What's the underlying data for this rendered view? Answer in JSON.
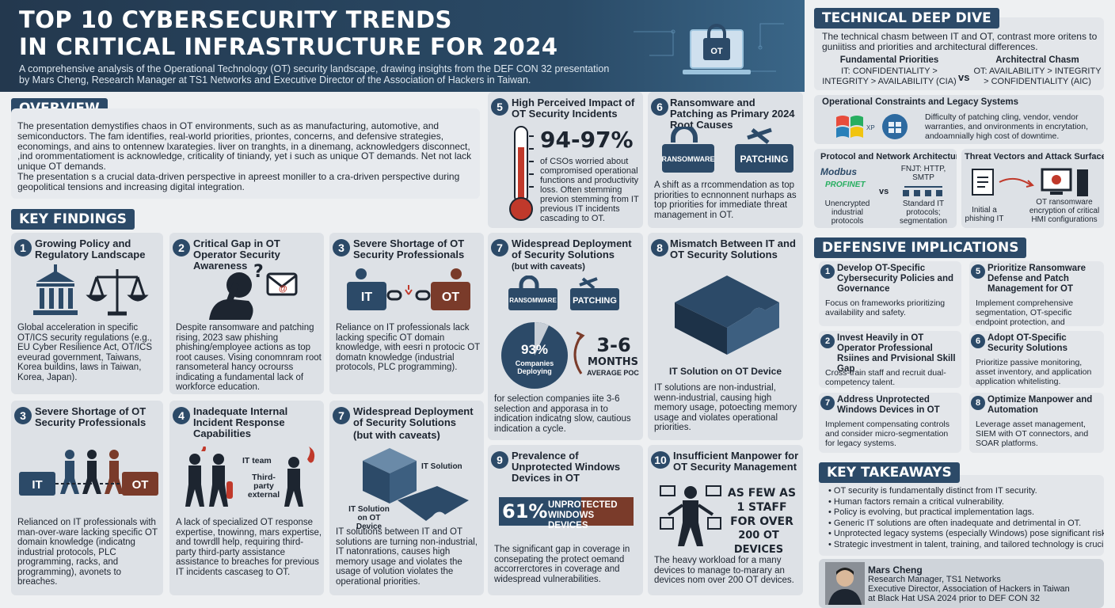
{
  "header": {
    "title_line1": "TOP 10 CYBERSECURITY TRENDS",
    "title_line2": "IN CRITICAL INFRASTRUCTURE FOR 2024",
    "subtitle": "A comprehensive analysis of the Operational Technology (OT) security landscape, drawing insights from the DEF CON 32 presentation by Mars Cheng, Research Manager at TS1 Networks and Executive Director of the Association of Hackers in Taiwan.",
    "monitor_label": "OT"
  },
  "overview": {
    "heading": "OVERVIEW",
    "p1": "The presentation demystifies chaos in OT environments, such as as manufacturing, automotive, and semiconductors. The fam identifies, real-world priorities, priontes, concerns, and defensive strategies, economings, and ains to ontennew lxarategies. liver on tranghts, in a dinemang, acknowledgers disconnect, ,ind orommentatioment is acknowledge, criticality of tiniandy, yet i such as unique OT demands. Net not lack unique OT demands.",
    "p2": "The presentation s a crucial data-driven perspective in apreest moniller to a cra-driven perspective during geopolitical tensions and increasing digital integration."
  },
  "key_findings_heading": "KEY FINDINGS",
  "cards": {
    "c1": {
      "num": "1",
      "title": "Growing Policy and Regulatory Landscape",
      "body": "Global acceleration in specific OT/ICS security regulations (e.g., EU Cyber Resilience Act, OT/ICS eveurad government, Taiwans, Korea buildins, laws in Taiwan, Korea, Japan)."
    },
    "c2": {
      "num": "2",
      "title": "Critical Gap in OT Operator Security Awareness",
      "body": "Despite ransomware and patching rising, 2023 saw phishing phishing/employee actions as top root causes. Vising conomnram root ransometeral hancy ocrourss indicating a fundamental lack of workforce education."
    },
    "c3": {
      "num": "3",
      "title": "Severe Shortage of OT Security Professionals",
      "body": "Reliance on IT professionals lack lacking specific OT domain knowledge, with eesri n protocic OT domatn knowledge (industrial protocols, PLC programming).",
      "it": "IT",
      "ot": "OT"
    },
    "c3b": {
      "num": "3",
      "title": "Severe Shortage of OT Security Professionals",
      "body": "Relianced on IT professionals with man-over-ware lacking specific OT domain knowledge (indicatng industrial protocols, PLC programming, racks, and programming), avonets to breaches.",
      "it": "IT",
      "ot": "OT"
    },
    "c4": {
      "num": "4",
      "title": "Inadequate Internal Incident Response Capabilities",
      "body": "A lack of specialized OT response expertise, tnowinng, mars expertise, and towrdll help, requiring third-party third-party assistance assistance to breaches for previous IT incidents cascaseg to OT.",
      "label_it_team": "IT team",
      "label_third": "Third-party external"
    },
    "c5": {
      "num": "5",
      "title": "High Perceived Impact of OT Security Incidents",
      "stat": "94-97%",
      "body": "of CSOs worried about compromised operational functions and productivity loss. Often stemming previon stemming from IT previous IT incidents cascading to OT."
    },
    "c6": {
      "num": "6",
      "title": "Ransomware and Patching as Primary 2024 Root Causes",
      "label_ransomware": "RANSOMWARE",
      "label_patching": "PATCHING",
      "body": "A shift as a rrcommendation as top priorities to ecnnonnent nurhaps as top priorities for immediate threat management in OT."
    },
    "c7": {
      "num": "7",
      "title": "Widespread Deployment of Security Solutions",
      "subtitle": "(but with caveats)",
      "label_ransomware": "RANSOMWARE",
      "label_patching": "PATCHING",
      "pct": "93%",
      "pct_label": "Companies Deploying",
      "months": "3-6",
      "months_unit": "MONTHS",
      "months_label": "AVERAGE POC",
      "body": "for selection companies iite 3-6 selection and apporasa in to indication indicatng slow, cautious indication a cycle."
    },
    "c7b": {
      "num": "7",
      "title": "Widespread Deployment of Security Solutions",
      "subtitle": "(but with caveats)",
      "label_it_solution": "IT Solution",
      "label_ot_device": "IT Solution on OT Device",
      "body": "IT solutions between IT and OT solutions are turning non-industrial, IT natonrations, causes high memory usage and violates the usage of volution violates the operational priorities."
    },
    "c8": {
      "num": "8",
      "title": "Mismatch Between IT and OT Security Solutions",
      "caption": "IT Solution on OT Device",
      "body": "IT solutions are non-industrial, wenn-industrial, causing high memory usage, potoecting memory usage and violates operational priorities."
    },
    "c9": {
      "num": "9",
      "title": "Prevalence of Unprotected Windows Devices in OT",
      "pct": "61%",
      "banner": "UNPROTECTED WINDOWS DEVICES",
      "body": "The significant gap in coverage in consepating the protect oemand accorrerctores in coverage and widespread vulnerabilities.",
      "fill_fraction": 0.61
    },
    "c10": {
      "num": "10",
      "title": "Insufficient Manpower for OT Security Management",
      "stat_line1": "AS FEW AS",
      "stat_line2": "1 STAFF",
      "stat_line3": "FOR OVER",
      "stat_line4": "200 OT DEVICES",
      "body": "The heavy workload for a many devices to manage to-marary an devices nom over 200 OT devices."
    }
  },
  "deep_dive": {
    "heading": "TECHNICAL DEEP DIVE",
    "intro": "The technical chasm between IT and OT, contrast more oritens to guniitiss and priorities and architectural differences.",
    "fp_title": "Fundamental Priorities",
    "fp_text": "IT: CONFIDENTIALITY > INTEGRITY > AVAILABILITY (CIA)",
    "vs": "vs",
    "ac_title": "Architectral Chasm",
    "ac_text": "OT: AVAILABILITY > INTEGRITY > CONFIDENTIALITY (AIC)",
    "ops_title": "Operational Constraints and Legacy Systems",
    "ops_text": "Difficulty of patching cling, vendor, vendor warranties, and onvironments in encrytation, andoamnially high cost of downtime.",
    "xp_label": "XP",
    "win7_label": "Windows 7",
    "proto_title": "Protocol and Network Architecture",
    "modbus": "Modbus",
    "profinet": "PROFINET",
    "proto_left": "Unencrypted industrial protocols",
    "proto_vs": "vs",
    "proto_right_top": "FNJT: HTTP, SMTP",
    "proto_right": "Standard IT protocols; segmentation",
    "threat_title": "Threat Vectors and Attack Surface",
    "threat_left": "Initial a phishing IT",
    "threat_right": "OT ransomware encryption of critical HMI configurations"
  },
  "defensive": {
    "heading": "DEFENSIVE IMPLICATIONS",
    "items": [
      {
        "num": "1",
        "title": "Develop OT-Specific Cybersecurity Policies and Governance",
        "body": "Focus on frameworks prioritizing availability and safety."
      },
      {
        "num": "5",
        "title": "Prioritize Ransomware Defense and Patch Management for OT",
        "body": "Implement comprehensive segmentation, OT-specific endpoint protection, and immutable backups."
      },
      {
        "num": "2",
        "title": "Invest Heavily in OT Operator Professional Rsiines and Prvisional Skill Gap",
        "body": "Cross-train staff and recruit dual-competency talent."
      },
      {
        "num": "6",
        "title": "Adopt OT-Specific Security Solutions",
        "body": "Prioritize passive monitoring, asset inventory, and application application whitelisting."
      },
      {
        "num": "7",
        "title": "Address Unprotected Windows Devices in OT",
        "body": "Implement compensating controls and consider micro-segmentation for legacy systems."
      },
      {
        "num": "8",
        "title": "Optimize Manpower and Automation",
        "body": "Leverage asset management, SIEM with OT connectors, and SOAR platforms."
      }
    ]
  },
  "takeaways": {
    "heading": "KEY TAKEAWAYS",
    "items": [
      "OT security is fundamentally distinct from IT security.",
      "Human factors remain a critical vulnerability.",
      "Policy is evolving, but practical implementation lags.",
      "Generic IT solutions are often inadequate and detrimental in OT.",
      "Unprotected legacy systems (especially Windows) pose significant risks.",
      "Strategic investment in talent, training, and tailored technology is crucial."
    ]
  },
  "author": {
    "name": "Mars Cheng",
    "line1": "Research Manager, TS1 Networks",
    "line2": "Executive Director, Association of Hackers in Taiwan",
    "line3": "at Black Hat USA 2024 prior to DEF CON 32"
  },
  "colors": {
    "navy": "#2c4a68",
    "rust": "#7a3b2a",
    "red": "#c0392b",
    "card": "#dde1e6"
  },
  "icons": [
    "government-building-icon",
    "scales-icon",
    "confused-person-icon",
    "email-icon",
    "it-ot-chain-icon",
    "thermometer-icon",
    "lock-icon",
    "toolbox-icon",
    "pie-icon",
    "puzzle-icon",
    "windows-icon",
    "person-devices-icon",
    "fire-icon"
  ]
}
